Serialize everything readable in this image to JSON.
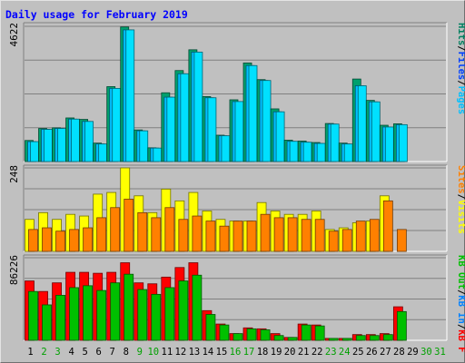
{
  "chart_data": {
    "type": "bar",
    "title": "Daily usage for February 2019",
    "x": [
      "1",
      "2",
      "3",
      "4",
      "5",
      "6",
      "7",
      "8",
      "9",
      "10",
      "11",
      "12",
      "13",
      "14",
      "15",
      "16",
      "17",
      "18",
      "19",
      "20",
      "21",
      "22",
      "23",
      "24",
      "25",
      "26",
      "27",
      "28",
      "29",
      "30",
      "31"
    ],
    "weekend_days": [
      "2",
      "3",
      "9",
      "10",
      "16",
      "17",
      "23",
      "24",
      "30",
      "31"
    ],
    "panels": [
      {
        "id": "hits",
        "ymax_label": "4622",
        "ymax": 4622,
        "legend": [
          {
            "name": "Pages",
            "color": "#00c0ff"
          },
          {
            "name": "Files",
            "color": "#0040ff"
          },
          {
            "name": "Hits",
            "color": "#008060"
          }
        ],
        "series": [
          {
            "name": "Hits",
            "color": "#00a06d",
            "values": [
              720,
              1130,
              1150,
              1490,
              1440,
              630,
              2560,
              4600,
              1080,
              470,
              2350,
              3110,
              3820,
              2220,
              900,
              2110,
              3370,
              2800,
              1800,
              730,
              700,
              650,
              1300,
              630,
              2820,
              2090,
              1240,
              1290,
              0,
              0,
              0
            ]
          },
          {
            "name": "Files",
            "color": "#00c0ff",
            "values": [
              680,
              1100,
              1130,
              1450,
              1370,
              600,
              2500,
              4500,
              1050,
              460,
              2200,
              3000,
              3740,
              2180,
              880,
              2050,
              3280,
              2770,
              1700,
              690,
              660,
              620,
              1280,
              600,
              2590,
              2040,
              1180,
              1260,
              0,
              0,
              0
            ]
          },
          {
            "name": "Pages",
            "color": "#00e0ff",
            "values": [
              680,
              1100,
              1130,
              1450,
              1370,
              600,
              2500,
              4500,
              1050,
              460,
              2200,
              3000,
              3740,
              2180,
              880,
              2050,
              3280,
              2770,
              1700,
              690,
              660,
              620,
              1280,
              600,
              2590,
              2040,
              1180,
              1260,
              0,
              0,
              0
            ]
          }
        ]
      },
      {
        "id": "visits",
        "ymax_label": "248",
        "ymax": 248,
        "legend": [
          {
            "name": "Visits",
            "color": "#ffff00"
          },
          {
            "name": "Sites",
            "color": "#ff8000"
          }
        ],
        "series": [
          {
            "name": "Visits",
            "color": "#ffff00",
            "values": [
              95,
              115,
              95,
              110,
              105,
              170,
              175,
              248,
              165,
              115,
              185,
              150,
              175,
              120,
              95,
              90,
              90,
              145,
              120,
              110,
              110,
              120,
              65,
              70,
              85,
              90,
              165,
              0,
              0,
              0,
              0
            ]
          },
          {
            "name": "Sites",
            "color": "#ff8000",
            "values": [
              65,
              70,
              60,
              65,
              70,
              100,
              130,
              155,
              115,
              100,
              130,
              95,
              105,
              90,
              75,
              90,
              90,
              110,
              100,
              100,
              95,
              95,
              60,
              65,
              90,
              95,
              150,
              65,
              0,
              0,
              0
            ]
          }
        ]
      },
      {
        "id": "kbytes",
        "ymax_label": "86226",
        "ymax": 86226,
        "legend": [
          {
            "name": "KB F",
            "color": "#ff0000"
          },
          {
            "name": "KB In",
            "color": "#0080ff"
          },
          {
            "name": "KB Out",
            "color": "#00c000"
          }
        ],
        "series": [
          {
            "name": "KB F",
            "color": "#ff0000",
            "values": [
              62000,
              51000,
              60000,
              71000,
              71000,
              70000,
              71000,
              81000,
              60000,
              59000,
              66000,
              76000,
              81000,
              31000,
              17000,
              7000,
              13000,
              12000,
              7000,
              3000,
              17000,
              16000,
              2000,
              2000,
              6000,
              6000,
              7000,
              35000,
              0,
              0,
              0
            ]
          },
          {
            "name": "KB Out",
            "color": "#00c000",
            "values": [
              51000,
              37000,
              47000,
              55000,
              57000,
              52000,
              60000,
              69000,
              53000,
              48000,
              55000,
              62000,
              68000,
              27000,
              16000,
              7000,
              12000,
              11000,
              5000,
              3000,
              16000,
              15000,
              2000,
              2000,
              5000,
              5000,
              6000,
              30000,
              0,
              0,
              0
            ]
          }
        ]
      }
    ]
  }
}
